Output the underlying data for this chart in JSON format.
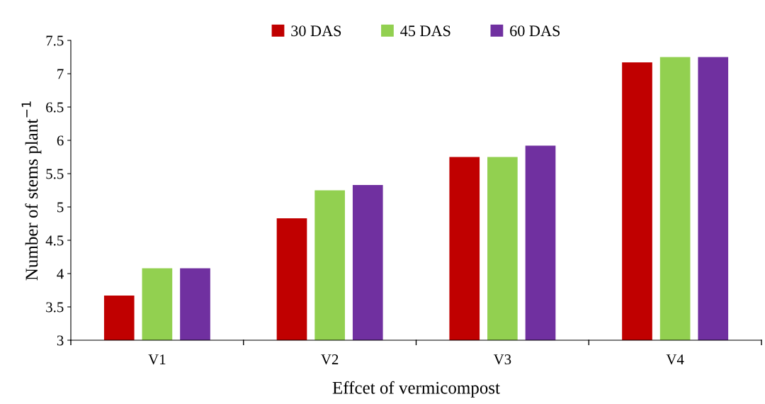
{
  "chart_data": {
    "type": "bar",
    "xlabel": "Effcet of vermicompost",
    "ylabel": "Number of stems plant$^{−1}$",
    "categories": [
      "V1",
      "V2",
      "V3",
      "V4"
    ],
    "series": [
      {
        "name": "30 DAS",
        "color": "#c00000",
        "values": [
          3.67,
          4.83,
          5.75,
          7.17
        ]
      },
      {
        "name": "45 DAS",
        "color": "#92d050",
        "values": [
          4.08,
          5.25,
          5.75,
          7.25
        ]
      },
      {
        "name": "60 DAS",
        "color": "#7030a0",
        "values": [
          4.08,
          5.33,
          5.92,
          7.25
        ]
      }
    ],
    "ylim": [
      3,
      7.5
    ],
    "yticks": [
      3,
      3.5,
      4,
      4.5,
      5,
      5.5,
      6,
      6.5,
      7,
      7.5
    ],
    "legend": "top",
    "grid": false
  }
}
